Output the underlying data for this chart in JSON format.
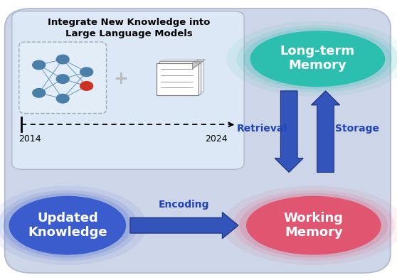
{
  "bg_color": "#cdd5e8",
  "box_title_line1": "Integrate New Knowledge into",
  "box_title_line2": "Large Language Models",
  "long_term_line1": "Long-term",
  "long_term_line2": "Memory",
  "updated_knowledge_line1": "Updated",
  "updated_knowledge_line2": "Knowledge",
  "working_memory_line1": "Working",
  "working_memory_line2": "Memory",
  "encoding_label": "Encoding",
  "retrieval_label": "Retrieval",
  "storage_label": "Storage",
  "arrow_label_color": "#2244bb",
  "arrow_label_fontsize": 10,
  "white_text_fontsize": 13,
  "title_fontsize": 9.5,
  "year_fontsize": 9,
  "ltm_color": "#2cbfb0",
  "uk_color": "#3a5ccc",
  "wm_color": "#e05570",
  "arrow_color": "#3355bb"
}
